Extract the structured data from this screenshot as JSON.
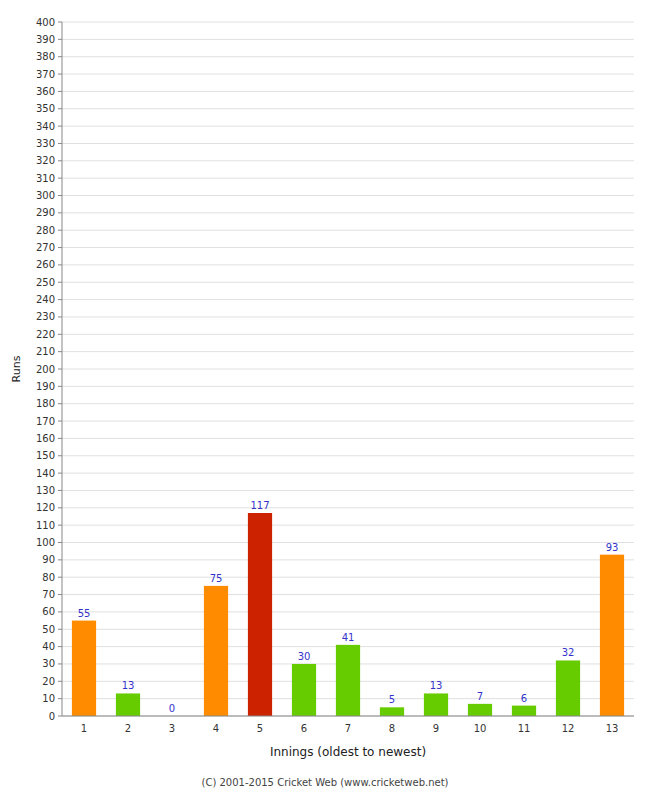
{
  "chart_data": {
    "type": "bar",
    "xlabel": "Innings (oldest to newest)",
    "ylabel": "Runs",
    "categories": [
      "1",
      "2",
      "3",
      "4",
      "5",
      "6",
      "7",
      "8",
      "9",
      "10",
      "11",
      "12",
      "13"
    ],
    "values": [
      55,
      13,
      0,
      75,
      117,
      30,
      41,
      5,
      13,
      7,
      6,
      32,
      93
    ],
    "colors": [
      "#ff8c00",
      "#66cc00",
      "#aaaaaa",
      "#ff8c00",
      "#cc2200",
      "#66cc00",
      "#66cc00",
      "#66cc00",
      "#66cc00",
      "#66cc00",
      "#66cc00",
      "#66cc00",
      "#ff8c00"
    ],
    "ylim": [
      0,
      400
    ],
    "yticks": [
      0,
      10,
      20,
      30,
      40,
      50,
      60,
      70,
      80,
      90,
      100,
      110,
      120,
      130,
      140,
      150,
      160,
      170,
      180,
      190,
      200,
      210,
      220,
      230,
      240,
      250,
      260,
      270,
      280,
      290,
      300,
      310,
      320,
      330,
      340,
      350,
      360,
      370,
      380,
      390,
      400
    ],
    "grid": true,
    "data_labels": true,
    "annotations": [
      "(C) 2001-2015 Cricket Web (www.cricketweb.net)"
    ]
  }
}
